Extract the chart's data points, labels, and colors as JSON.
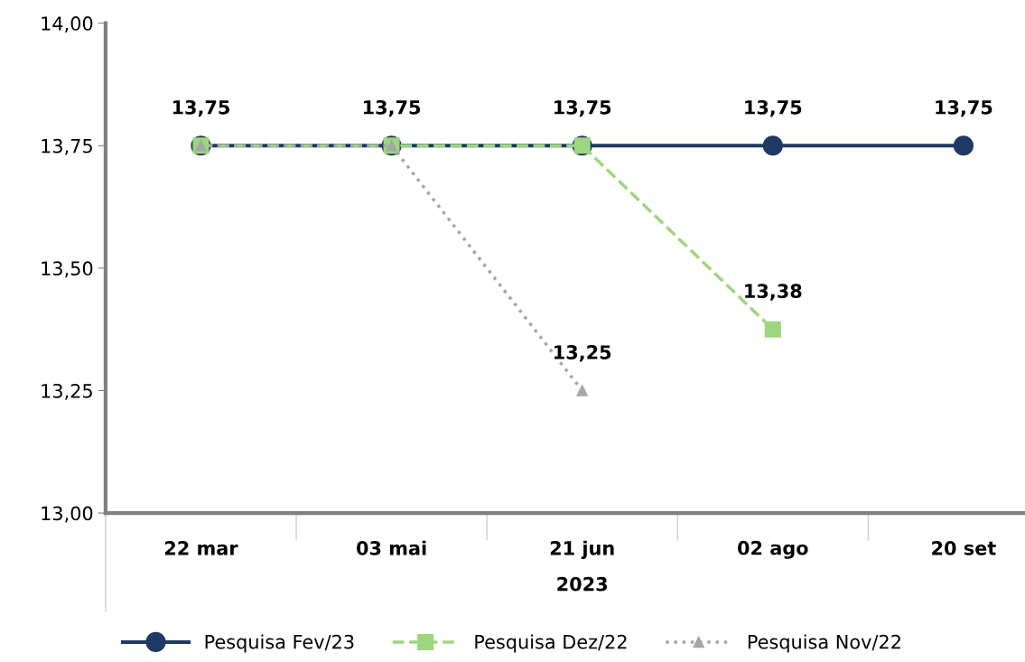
{
  "chart_data": {
    "type": "line",
    "xlabel": "2023",
    "categories": [
      "22 mar",
      "03 mai",
      "21 jun",
      "02 ago",
      "20 set"
    ],
    "ylim": [
      13.0,
      14.0
    ],
    "yticks": [
      {
        "value": 13.0,
        "label": "13,00"
      },
      {
        "value": 13.25,
        "label": "13,25"
      },
      {
        "value": 13.5,
        "label": "13,50"
      },
      {
        "value": 13.75,
        "label": "13,75"
      },
      {
        "value": 14.0,
        "label": "14,00"
      }
    ],
    "grid": false,
    "legend": "bottom",
    "series": [
      {
        "name": "Pesquisa Fev/23",
        "color": "#1f3864",
        "marker": "circle",
        "line_style": "solid",
        "values": [
          13.75,
          13.75,
          13.75,
          13.75,
          13.75
        ],
        "value_labels": [
          "13,75",
          "13,75",
          "13,75",
          "13,75",
          "13,75"
        ]
      },
      {
        "name": "Pesquisa Dez/22",
        "color": "#9dd67f",
        "marker": "square",
        "line_style": "dashed",
        "values": [
          13.75,
          13.75,
          13.75,
          13.375,
          null
        ],
        "value_labels": [
          null,
          null,
          null,
          "13,38",
          null
        ]
      },
      {
        "name": "Pesquisa Nov/22",
        "color": "#a6a6a6",
        "marker": "triangle",
        "line_style": "dotted",
        "values": [
          13.75,
          13.75,
          13.25,
          null,
          null
        ],
        "value_labels": [
          null,
          null,
          "13,25",
          null,
          null
        ]
      }
    ]
  }
}
